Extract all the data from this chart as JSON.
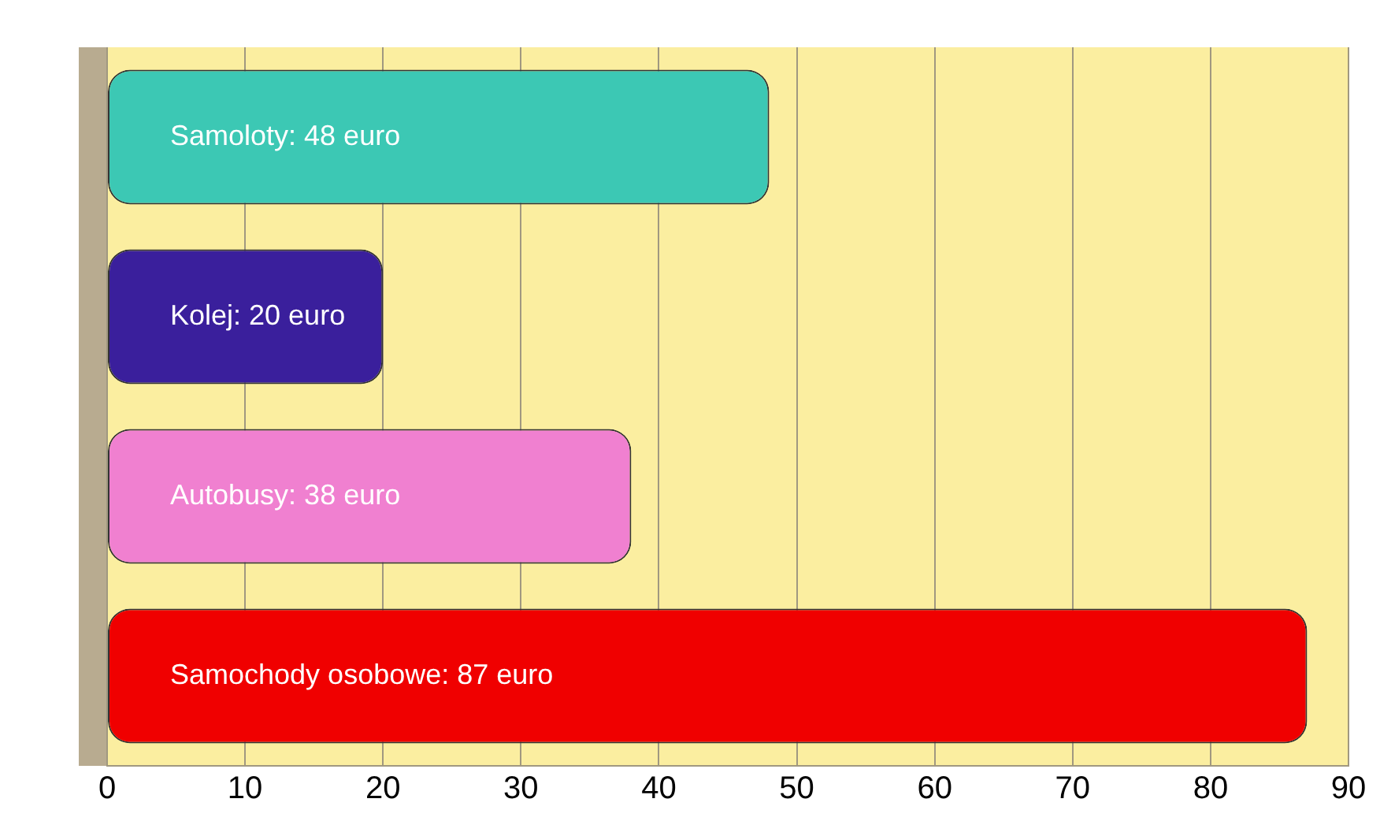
{
  "chart_data": {
    "type": "bar",
    "orientation": "horizontal",
    "categories": [
      null,
      null,
      null,
      null
    ],
    "values": [
      48,
      20,
      38,
      87
    ],
    "colors": [
      "#3cc8b4",
      "#3a1f9c",
      "#f080d0",
      "#f00000"
    ],
    "value_labels": [
      "Samoloty: 48 euro",
      "Kolej: 20 euro",
      "Autobusy: 38 euro",
      "Samochody osobowe: 87 euro"
    ],
    "xlim": [
      0,
      90
    ],
    "xticks": [
      0,
      10,
      20,
      30,
      40,
      50,
      60,
      70,
      80,
      90
    ],
    "grid": "x",
    "legend": false
  }
}
